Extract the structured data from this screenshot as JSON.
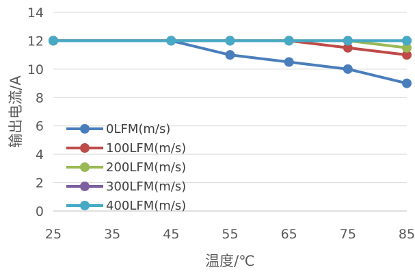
{
  "chart_data": {
    "type": "line",
    "title": "",
    "xlabel": "温度/℃",
    "ylabel": "输出电流/A",
    "x": [
      25,
      35,
      45,
      55,
      65,
      75,
      85
    ],
    "x_ticks": [
      "25",
      "35",
      "45",
      "55",
      "65",
      "75",
      "85"
    ],
    "y_ticks": [
      "0",
      "2",
      "4",
      "6",
      "8",
      "10",
      "12",
      "14"
    ],
    "xlim": [
      25,
      85
    ],
    "ylim": [
      0,
      14
    ],
    "grid": "horizontal",
    "legend_position": "left-center",
    "series": [
      {
        "name": "0LFM(m/s)",
        "color": "#4a7ebb",
        "x": [
          25,
          45,
          55,
          65,
          75,
          85
        ],
        "values": [
          12,
          12,
          11,
          10.5,
          10,
          9
        ]
      },
      {
        "name": "100LFM(m/s)",
        "color": "#be4b48",
        "x": [
          25,
          45,
          55,
          65,
          75,
          85
        ],
        "values": [
          12,
          12,
          12,
          12,
          11.5,
          11
        ]
      },
      {
        "name": "200LFM(m/s)",
        "color": "#98b954",
        "x": [
          25,
          45,
          55,
          65,
          75,
          85
        ],
        "values": [
          12,
          12,
          12,
          12,
          12,
          11.5
        ]
      },
      {
        "name": "300LFM(m/s)",
        "color": "#7d5fa0",
        "x": [
          25,
          45,
          55,
          65,
          75,
          85
        ],
        "values": [
          12,
          12,
          12,
          12,
          12,
          12
        ]
      },
      {
        "name": "400LFM(m/s)",
        "color": "#46aac5",
        "x": [
          25,
          45,
          55,
          65,
          75,
          85
        ],
        "values": [
          12,
          12,
          12,
          12,
          12,
          12
        ]
      }
    ]
  }
}
